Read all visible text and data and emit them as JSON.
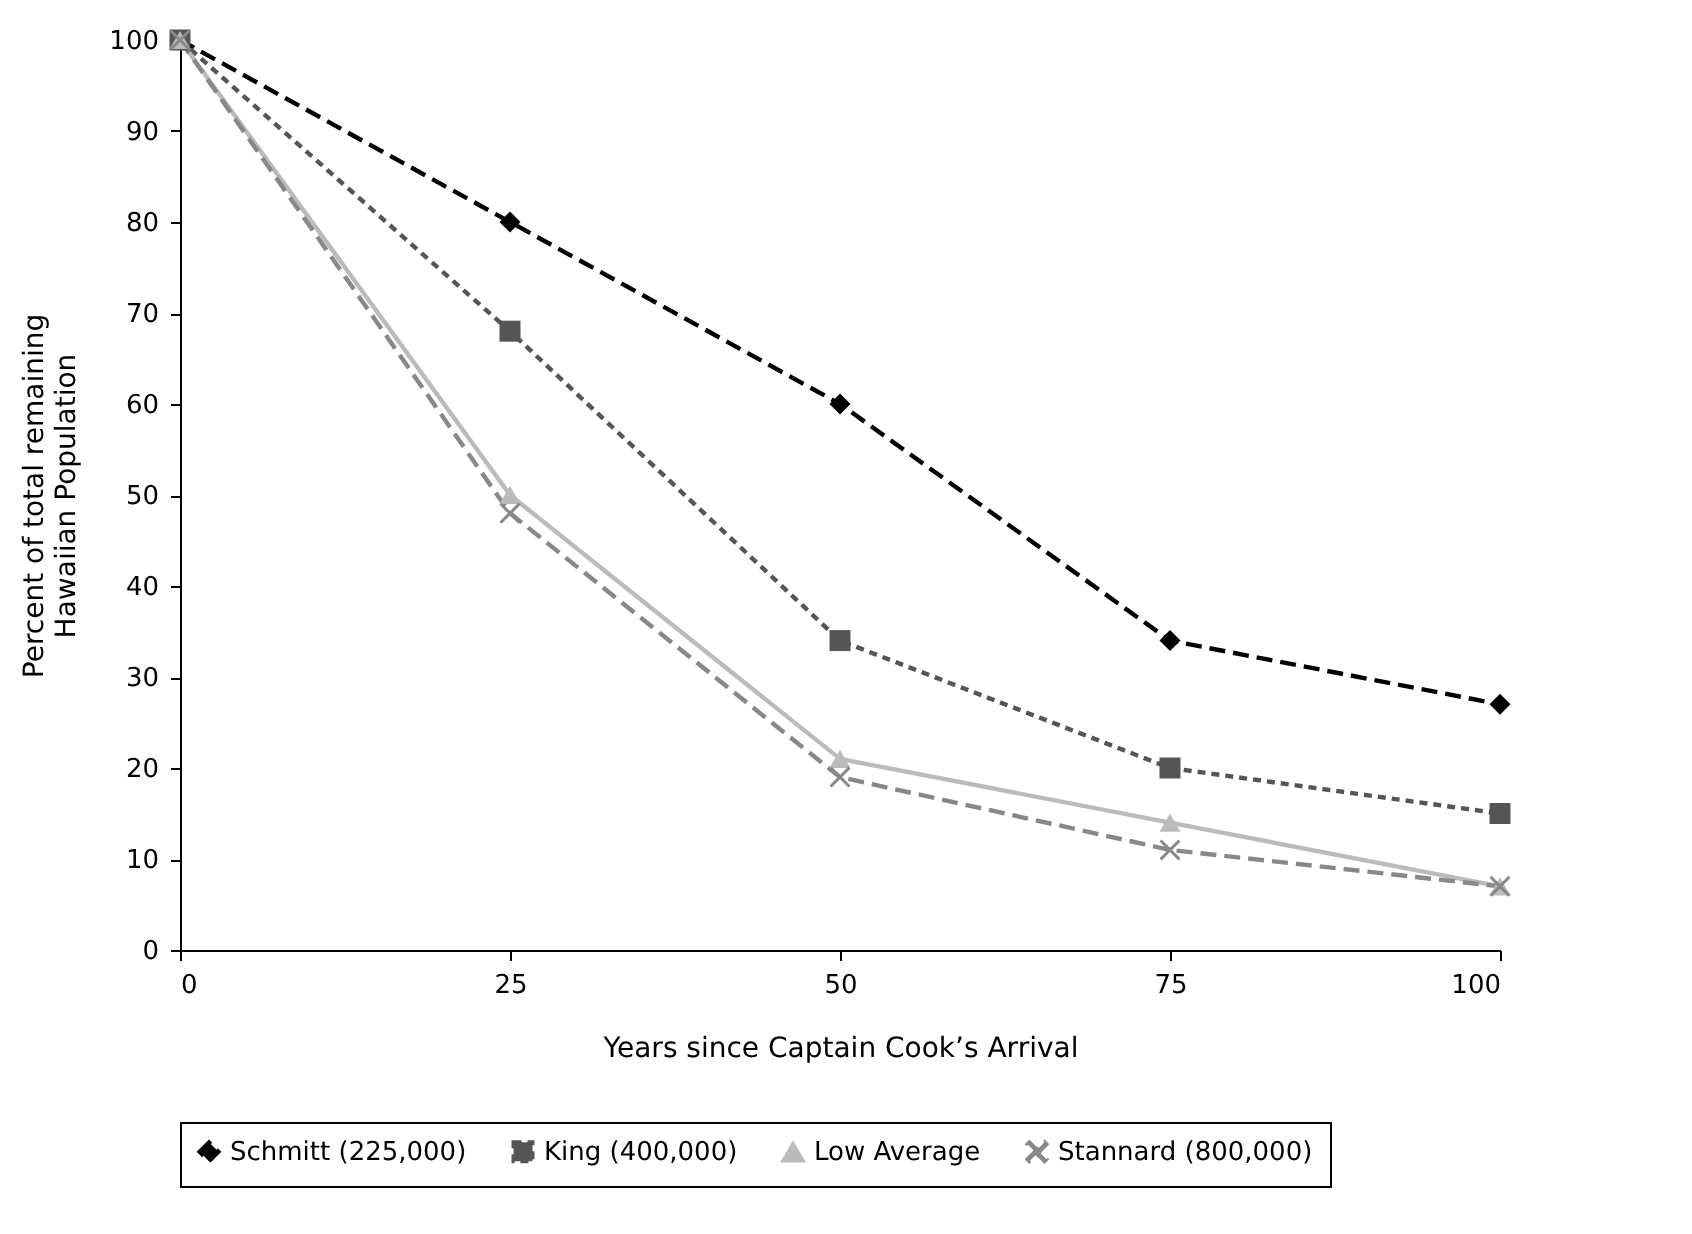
{
  "chart_data": {
    "type": "line",
    "xlabel": "Years since Captain Cook’s Arrival",
    "ylabel": "Percent of total remaining Hawaiian Population",
    "x": [
      0,
      25,
      50,
      75,
      100
    ],
    "series": [
      {
        "name": "Schmitt (225,000)",
        "color": "#000000",
        "marker": "diamond",
        "line_style": "dashed",
        "values": [
          100,
          80,
          60,
          34,
          27
        ]
      },
      {
        "name": "King (400,000)",
        "color": "#555555",
        "marker": "square",
        "line_style": "dotted",
        "values": [
          100,
          68,
          34,
          20,
          15
        ]
      },
      {
        "name": "Low Average",
        "color": "#bbbbbb",
        "marker": "triangle",
        "line_style": "solid",
        "values": [
          100,
          50,
          21,
          14,
          7
        ]
      },
      {
        "name": "Stannard (800,000)",
        "color": "#888888",
        "marker": "cross",
        "line_style": "dashed",
        "values": [
          100,
          48,
          19,
          11,
          7
        ]
      }
    ],
    "xlim": [
      0,
      100
    ],
    "xticks": [
      0,
      25,
      50,
      75,
      100
    ],
    "ylim": [
      0,
      100
    ],
    "yticks": [
      0,
      10,
      20,
      30,
      40,
      50,
      60,
      70,
      80,
      90,
      100
    ],
    "grid": false,
    "legend": "bottom"
  }
}
